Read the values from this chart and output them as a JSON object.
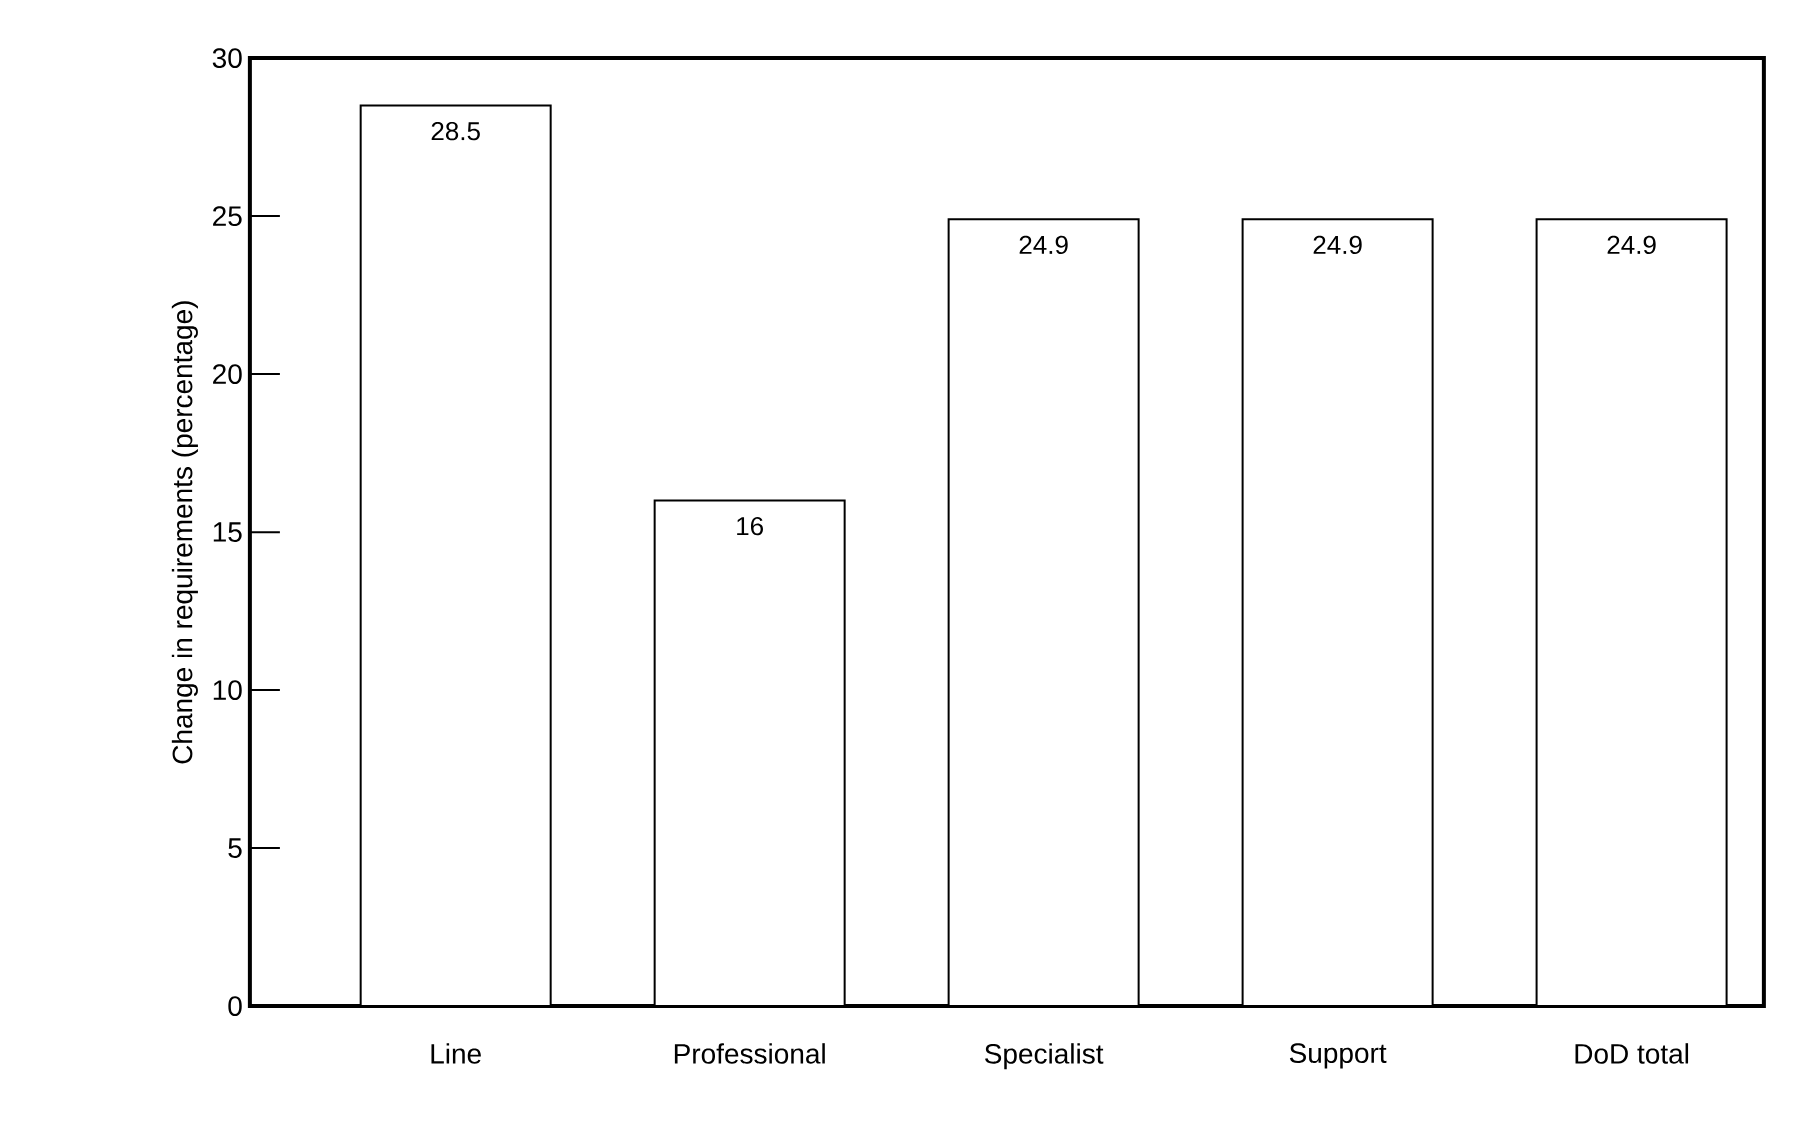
{
  "chart_data": {
    "type": "bar",
    "ylabel": "Change in requirements (percentage)",
    "categories": [
      "Line",
      "Professional",
      "Specialist",
      "Support",
      "DoD total"
    ],
    "values": [
      28.5,
      16,
      24.9,
      24.9,
      24.9
    ],
    "color": "#ffffff",
    "ylim": [
      0,
      30
    ],
    "yticks": [
      0,
      5,
      10,
      15,
      20,
      25,
      30
    ],
    "data_labels": true,
    "grid": false
  }
}
